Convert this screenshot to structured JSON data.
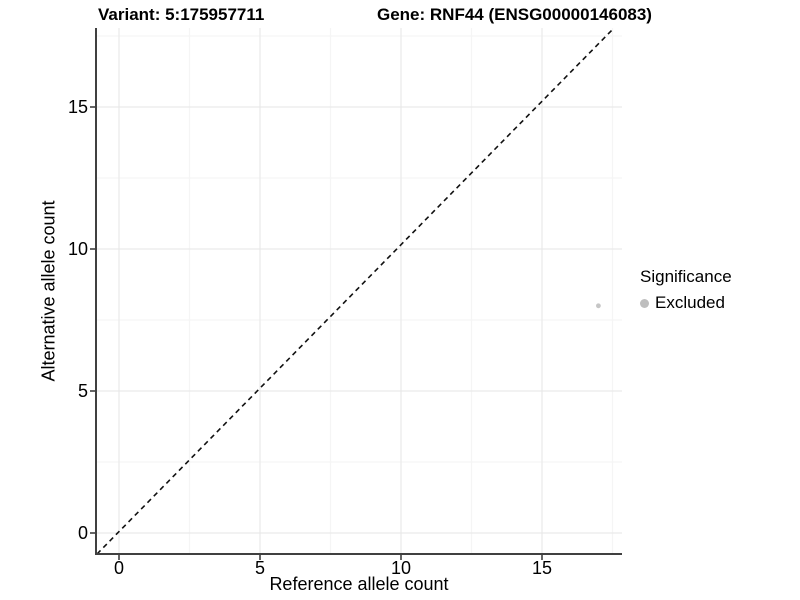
{
  "titles": {
    "variant": "Variant: 5:175957711",
    "gene": "Gene: RNF44 (ENSG00000146083)"
  },
  "axes": {
    "x_label": "Reference allele count",
    "y_label": "Alternative allele count"
  },
  "legend": {
    "title": "Significance",
    "items": [
      {
        "label": "Excluded",
        "color": "#bebebe"
      }
    ]
  },
  "chart_data": {
    "type": "scatter",
    "title": "Variant: 5:175957711 | Gene: RNF44 (ENSG00000146083)",
    "xlabel": "Reference allele count",
    "ylabel": "Alternative allele count",
    "x_ticks": [
      0,
      5,
      10,
      15
    ],
    "y_ticks": [
      0,
      5,
      10,
      15
    ],
    "x_tick_labels": [
      "0",
      "5",
      "10",
      "15"
    ],
    "y_tick_labels": [
      "0",
      "5",
      "10",
      "15"
    ],
    "xlim": [
      -0.85,
      17.85
    ],
    "ylim": [
      -0.85,
      17.85
    ],
    "grid": true,
    "legend_position": "right",
    "legend_title": "Significance",
    "series": [
      {
        "name": "Excluded",
        "color": "#c6c6c6",
        "points": [
          {
            "x": 17,
            "y": 8
          }
        ]
      }
    ],
    "reference_line": {
      "type": "identity",
      "equation": "y = x",
      "style": "dashed",
      "color": "#111111"
    }
  },
  "colors": {
    "axis_line": "#404040",
    "grid_major": "#e9e9e9",
    "grid_minor": "#f5f5f5",
    "background": "#ffffff"
  }
}
